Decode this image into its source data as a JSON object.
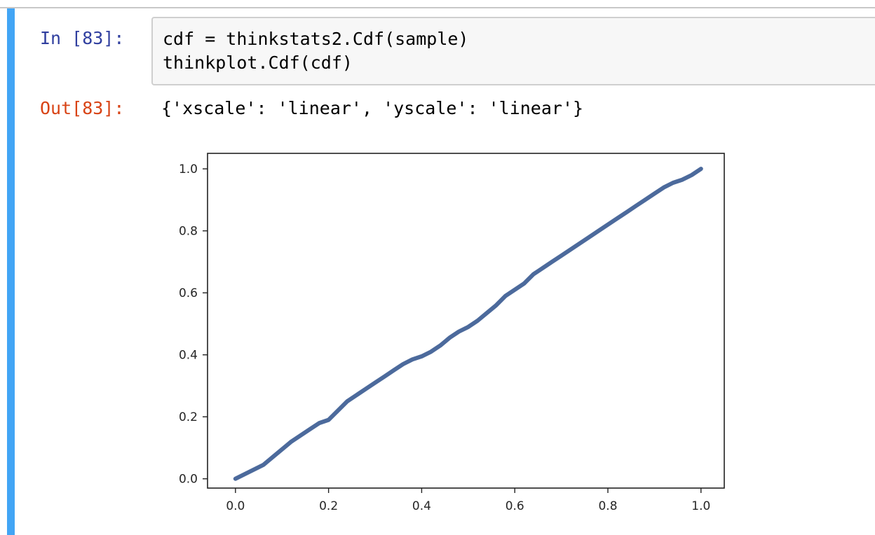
{
  "cell": {
    "input_prompt": "In [83]:",
    "output_prompt": "Out[83]:",
    "code_lines": [
      "cdf = thinkstats2.Cdf(sample)",
      "thinkplot.Cdf(cdf)"
    ],
    "output_text": "{'xscale': 'linear', 'yscale': 'linear'}"
  },
  "colors": {
    "cell_bar": "#42a5f5",
    "input_prompt": "#303f9f",
    "output_prompt": "#d84315",
    "series": "#4c6a9c"
  },
  "chart_data": {
    "type": "line",
    "title": "",
    "xlabel": "",
    "ylabel": "",
    "xlim": [
      -0.06,
      1.05
    ],
    "ylim": [
      -0.03,
      1.05
    ],
    "grid": false,
    "xticks": [
      "0.0",
      "0.2",
      "0.4",
      "0.6",
      "0.8",
      "1.0"
    ],
    "yticks": [
      "0.0",
      "0.2",
      "0.4",
      "0.6",
      "0.8",
      "1.0"
    ],
    "series": [
      {
        "x": [
          0.0,
          0.02,
          0.04,
          0.06,
          0.08,
          0.1,
          0.12,
          0.14,
          0.16,
          0.18,
          0.2,
          0.22,
          0.24,
          0.26,
          0.28,
          0.3,
          0.32,
          0.34,
          0.36,
          0.38,
          0.4,
          0.42,
          0.44,
          0.46,
          0.48,
          0.5,
          0.52,
          0.54,
          0.56,
          0.58,
          0.6,
          0.62,
          0.64,
          0.66,
          0.68,
          0.7,
          0.72,
          0.74,
          0.76,
          0.78,
          0.8,
          0.82,
          0.84,
          0.86,
          0.88,
          0.9,
          0.92,
          0.94,
          0.96,
          0.98,
          1.0
        ],
        "y": [
          0.0,
          0.015,
          0.03,
          0.045,
          0.07,
          0.095,
          0.12,
          0.14,
          0.16,
          0.18,
          0.19,
          0.22,
          0.25,
          0.27,
          0.29,
          0.31,
          0.33,
          0.35,
          0.37,
          0.385,
          0.395,
          0.41,
          0.43,
          0.455,
          0.475,
          0.49,
          0.51,
          0.535,
          0.56,
          0.59,
          0.61,
          0.63,
          0.66,
          0.68,
          0.7,
          0.72,
          0.74,
          0.76,
          0.78,
          0.8,
          0.82,
          0.84,
          0.86,
          0.88,
          0.9,
          0.92,
          0.94,
          0.955,
          0.965,
          0.98,
          1.0
        ]
      }
    ]
  }
}
